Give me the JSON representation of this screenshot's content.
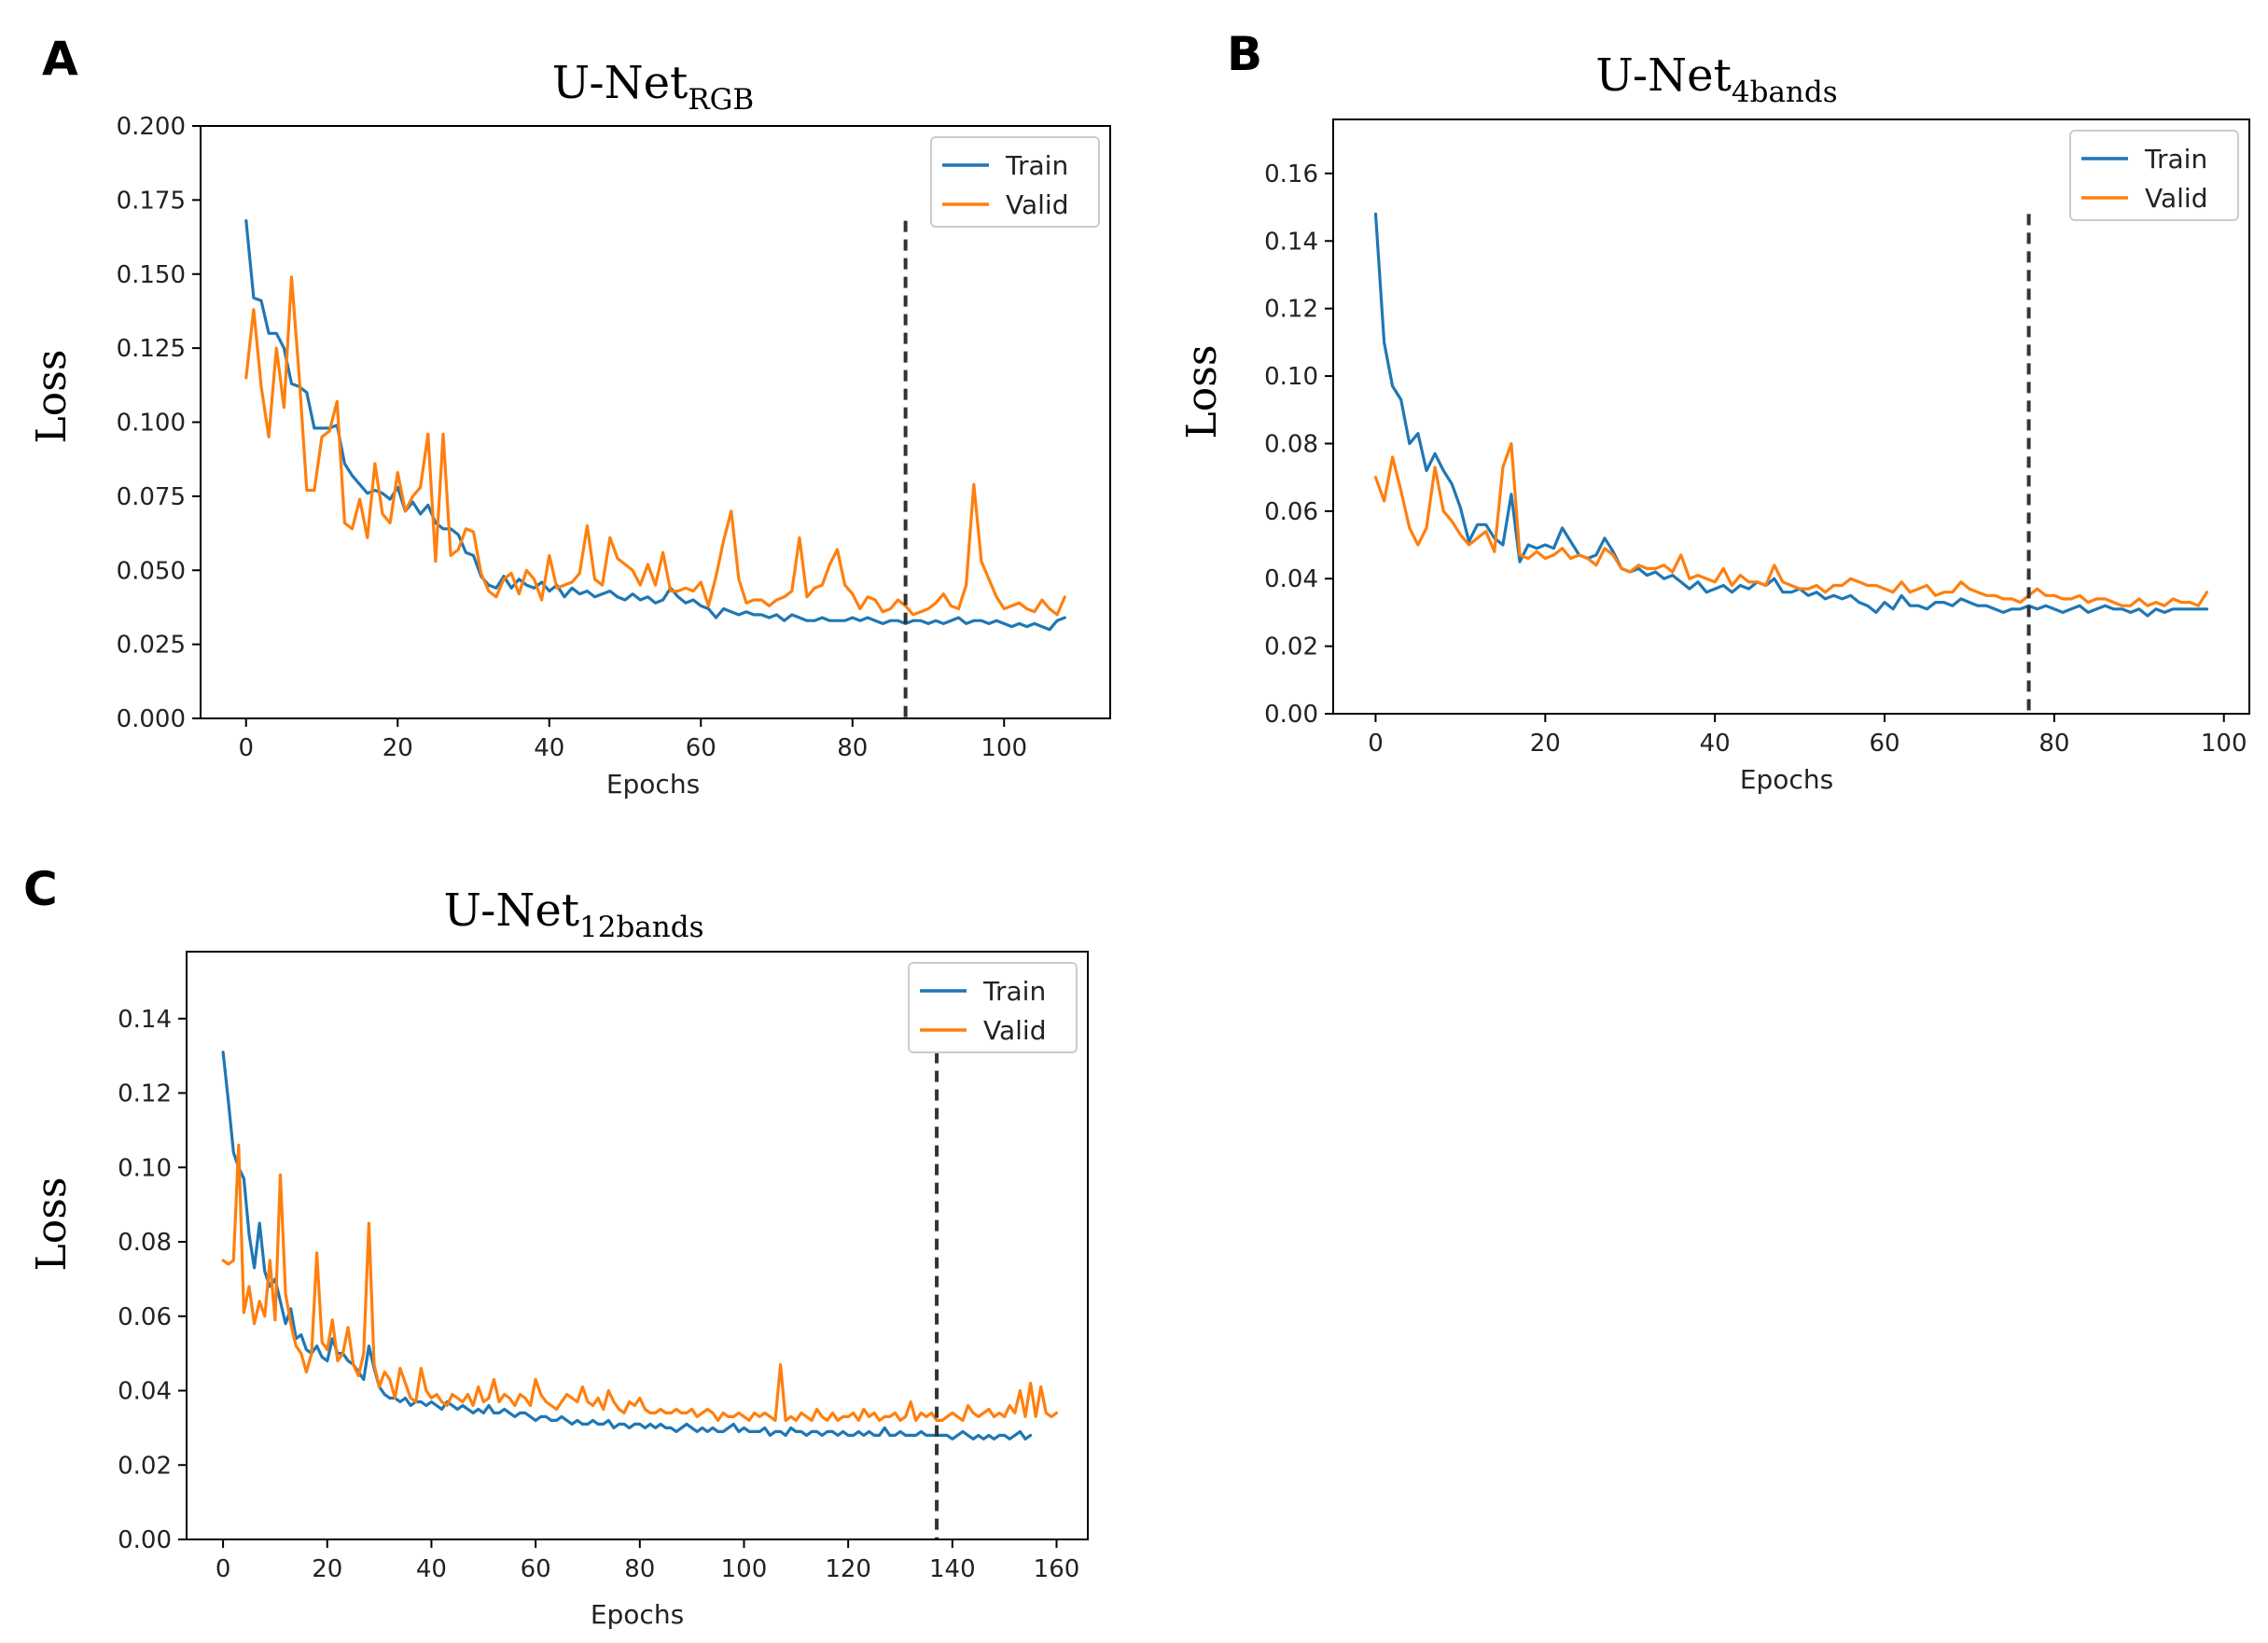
{
  "colors": {
    "train": "#1f77b4",
    "valid": "#ff7f0e",
    "vline": "#333333"
  },
  "chart_data": [
    {
      "panel": "A",
      "type": "line",
      "title": "U-Net",
      "title_sub": "RGB",
      "xlabel": "Epochs",
      "ylabel": "Loss",
      "xlim": [
        -6,
        114
      ],
      "ylim": [
        0,
        0.2
      ],
      "xticks": [
        0,
        20,
        40,
        60,
        80,
        100
      ],
      "yticks": [
        0.0,
        0.025,
        0.05,
        0.075,
        0.1,
        0.125,
        0.15,
        0.175,
        0.2
      ],
      "ytick_labels": [
        "0.000",
        "0.025",
        "0.050",
        "0.075",
        "0.100",
        "0.125",
        "0.150",
        "0.175",
        "0.200"
      ],
      "legend": [
        "Train",
        "Valid"
      ],
      "legend_position": "top-right",
      "best_epoch": 87,
      "best_epoch_top": 0.168,
      "series": [
        {
          "name": "Train",
          "values": [
            0.168,
            0.142,
            0.141,
            0.13,
            0.13,
            0.125,
            0.113,
            0.112,
            0.11,
            0.098,
            0.098,
            0.098,
            0.099,
            0.086,
            0.082,
            0.079,
            0.076,
            0.077,
            0.076,
            0.074,
            0.078,
            0.07,
            0.073,
            0.069,
            0.072,
            0.066,
            0.064,
            0.064,
            0.062,
            0.056,
            0.055,
            0.048,
            0.045,
            0.044,
            0.048,
            0.044,
            0.047,
            0.045,
            0.044,
            0.046,
            0.043,
            0.045,
            0.041,
            0.044,
            0.042,
            0.043,
            0.041,
            0.042,
            0.043,
            0.041,
            0.04,
            0.042,
            0.04,
            0.041,
            0.039,
            0.04,
            0.044,
            0.041,
            0.039,
            0.04,
            0.038,
            0.037,
            0.034,
            0.037,
            0.036,
            0.035,
            0.036,
            0.035,
            0.035,
            0.034,
            0.035,
            0.033,
            0.035,
            0.034,
            0.033,
            0.033,
            0.034,
            0.033,
            0.033,
            0.033,
            0.034,
            0.033,
            0.034,
            0.033,
            0.032,
            0.033,
            0.033,
            0.032,
            0.033,
            0.033,
            0.032,
            0.033,
            0.032,
            0.033,
            0.034,
            0.032,
            0.033,
            0.033,
            0.032,
            0.033,
            0.032,
            0.031,
            0.032,
            0.031,
            0.032,
            0.031,
            0.03,
            0.033,
            0.034
          ]
        },
        {
          "name": "Valid",
          "values": [
            0.115,
            0.138,
            0.112,
            0.095,
            0.125,
            0.105,
            0.149,
            0.116,
            0.077,
            0.077,
            0.095,
            0.097,
            0.107,
            0.066,
            0.064,
            0.074,
            0.061,
            0.086,
            0.069,
            0.066,
            0.083,
            0.07,
            0.075,
            0.078,
            0.096,
            0.053,
            0.096,
            0.055,
            0.057,
            0.064,
            0.063,
            0.049,
            0.043,
            0.041,
            0.047,
            0.049,
            0.042,
            0.05,
            0.047,
            0.04,
            0.055,
            0.044,
            0.045,
            0.046,
            0.049,
            0.065,
            0.047,
            0.045,
            0.061,
            0.054,
            0.052,
            0.05,
            0.045,
            0.052,
            0.045,
            0.056,
            0.043,
            0.043,
            0.044,
            0.043,
            0.046,
            0.038,
            0.048,
            0.06,
            0.07,
            0.047,
            0.039,
            0.04,
            0.04,
            0.038,
            0.04,
            0.041,
            0.043,
            0.061,
            0.041,
            0.044,
            0.045,
            0.052,
            0.057,
            0.045,
            0.042,
            0.037,
            0.041,
            0.04,
            0.036,
            0.037,
            0.04,
            0.038,
            0.035,
            0.036,
            0.037,
            0.039,
            0.042,
            0.038,
            0.037,
            0.045,
            0.079,
            0.053,
            0.047,
            0.041,
            0.037,
            0.038,
            0.039,
            0.037,
            0.036,
            0.04,
            0.037,
            0.035,
            0.041
          ]
        }
      ]
    },
    {
      "panel": "B",
      "type": "line",
      "title": "U-Net",
      "title_sub": "4bands",
      "xlabel": "Epochs",
      "ylabel": "Loss",
      "xlim": [
        -5,
        103
      ],
      "ylim": [
        0,
        0.176
      ],
      "xticks": [
        0,
        20,
        40,
        60,
        80,
        100
      ],
      "yticks": [
        0.0,
        0.02,
        0.04,
        0.06,
        0.08,
        0.1,
        0.12,
        0.14,
        0.16
      ],
      "ytick_labels": [
        "0.00",
        "0.02",
        "0.04",
        "0.06",
        "0.08",
        "0.10",
        "0.12",
        "0.14",
        "0.16"
      ],
      "legend": [
        "Train",
        "Valid"
      ],
      "legend_position": "top-right",
      "best_epoch": 77,
      "best_epoch_top": 0.148,
      "series": [
        {
          "name": "Train",
          "values": [
            0.148,
            0.11,
            0.097,
            0.093,
            0.08,
            0.083,
            0.072,
            0.077,
            0.072,
            0.068,
            0.061,
            0.051,
            0.056,
            0.056,
            0.052,
            0.05,
            0.065,
            0.045,
            0.05,
            0.049,
            0.05,
            0.049,
            0.055,
            0.051,
            0.047,
            0.046,
            0.047,
            0.052,
            0.048,
            0.043,
            0.042,
            0.043,
            0.041,
            0.042,
            0.04,
            0.041,
            0.039,
            0.037,
            0.039,
            0.036,
            0.037,
            0.038,
            0.036,
            0.038,
            0.037,
            0.039,
            0.038,
            0.04,
            0.036,
            0.036,
            0.037,
            0.035,
            0.036,
            0.034,
            0.035,
            0.034,
            0.035,
            0.033,
            0.032,
            0.03,
            0.033,
            0.031,
            0.035,
            0.032,
            0.032,
            0.031,
            0.033,
            0.033,
            0.032,
            0.034,
            0.033,
            0.032,
            0.032,
            0.031,
            0.03,
            0.031,
            0.031,
            0.032,
            0.031,
            0.032,
            0.031,
            0.03,
            0.031,
            0.032,
            0.03,
            0.031,
            0.032,
            0.031,
            0.031,
            0.03,
            0.031,
            0.029,
            0.031,
            0.03,
            0.031,
            0.031,
            0.031,
            0.031,
            0.031
          ]
        },
        {
          "name": "Valid",
          "values": [
            0.07,
            0.063,
            0.076,
            0.066,
            0.055,
            0.05,
            0.055,
            0.073,
            0.06,
            0.057,
            0.053,
            0.05,
            0.052,
            0.054,
            0.048,
            0.073,
            0.08,
            0.047,
            0.046,
            0.048,
            0.046,
            0.047,
            0.049,
            0.046,
            0.047,
            0.046,
            0.044,
            0.049,
            0.047,
            0.043,
            0.042,
            0.044,
            0.043,
            0.043,
            0.044,
            0.042,
            0.047,
            0.04,
            0.041,
            0.04,
            0.039,
            0.043,
            0.038,
            0.041,
            0.039,
            0.039,
            0.038,
            0.044,
            0.039,
            0.038,
            0.037,
            0.037,
            0.038,
            0.036,
            0.038,
            0.038,
            0.04,
            0.039,
            0.038,
            0.038,
            0.037,
            0.036,
            0.039,
            0.036,
            0.037,
            0.038,
            0.035,
            0.036,
            0.036,
            0.039,
            0.037,
            0.036,
            0.035,
            0.035,
            0.034,
            0.034,
            0.033,
            0.035,
            0.037,
            0.035,
            0.035,
            0.034,
            0.034,
            0.035,
            0.033,
            0.034,
            0.034,
            0.033,
            0.032,
            0.032,
            0.034,
            0.032,
            0.033,
            0.032,
            0.034,
            0.033,
            0.033,
            0.032,
            0.036
          ]
        }
      ]
    },
    {
      "panel": "C",
      "type": "line",
      "title": "U-Net",
      "title_sub": "12bands",
      "xlabel": "Epochs",
      "ylabel": "Loss",
      "xlim": [
        -7,
        166
      ],
      "ylim": [
        0,
        0.158
      ],
      "xticks": [
        0,
        20,
        40,
        60,
        80,
        100,
        120,
        140,
        160
      ],
      "yticks": [
        0.0,
        0.02,
        0.04,
        0.06,
        0.08,
        0.1,
        0.12,
        0.14
      ],
      "ytick_labels": [
        "0.00",
        "0.02",
        "0.04",
        "0.06",
        "0.08",
        "0.10",
        "0.12",
        "0.14"
      ],
      "legend": [
        "Train",
        "Valid"
      ],
      "legend_position": "top-right",
      "best_epoch": 137,
      "best_epoch_top": 0.131,
      "series": [
        {
          "name": "Train",
          "values": [
            0.131,
            0.118,
            0.104,
            0.1,
            0.097,
            0.082,
            0.073,
            0.085,
            0.072,
            0.068,
            0.07,
            0.064,
            0.058,
            0.062,
            0.054,
            0.055,
            0.051,
            0.05,
            0.052,
            0.049,
            0.048,
            0.054,
            0.05,
            0.05,
            0.048,
            0.047,
            0.045,
            0.043,
            0.052,
            0.046,
            0.041,
            0.039,
            0.038,
            0.038,
            0.037,
            0.038,
            0.036,
            0.037,
            0.037,
            0.036,
            0.037,
            0.036,
            0.035,
            0.037,
            0.036,
            0.035,
            0.036,
            0.035,
            0.034,
            0.035,
            0.034,
            0.036,
            0.034,
            0.034,
            0.035,
            0.034,
            0.033,
            0.034,
            0.034,
            0.033,
            0.032,
            0.033,
            0.033,
            0.032,
            0.032,
            0.033,
            0.032,
            0.031,
            0.032,
            0.031,
            0.031,
            0.032,
            0.031,
            0.031,
            0.032,
            0.03,
            0.031,
            0.031,
            0.03,
            0.031,
            0.031,
            0.03,
            0.031,
            0.03,
            0.031,
            0.03,
            0.03,
            0.029,
            0.03,
            0.031,
            0.03,
            0.029,
            0.03,
            0.029,
            0.03,
            0.029,
            0.029,
            0.03,
            0.031,
            0.029,
            0.03,
            0.029,
            0.029,
            0.029,
            0.03,
            0.028,
            0.029,
            0.029,
            0.028,
            0.03,
            0.029,
            0.029,
            0.028,
            0.029,
            0.029,
            0.028,
            0.029,
            0.029,
            0.028,
            0.029,
            0.028,
            0.028,
            0.029,
            0.028,
            0.029,
            0.028,
            0.028,
            0.03,
            0.028,
            0.028,
            0.029,
            0.028,
            0.028,
            0.028,
            0.029,
            0.028,
            0.028,
            0.028,
            0.028,
            0.028,
            0.027,
            0.028,
            0.029,
            0.028,
            0.027,
            0.028,
            0.027,
            0.028,
            0.027,
            0.028,
            0.028,
            0.027,
            0.028,
            0.029,
            0.027,
            0.028
          ]
        },
        {
          "name": "Valid",
          "values": [
            0.075,
            0.074,
            0.075,
            0.106,
            0.061,
            0.068,
            0.058,
            0.064,
            0.06,
            0.075,
            0.059,
            0.098,
            0.066,
            0.058,
            0.052,
            0.05,
            0.045,
            0.05,
            0.077,
            0.053,
            0.051,
            0.059,
            0.048,
            0.05,
            0.057,
            0.047,
            0.044,
            0.05,
            0.085,
            0.047,
            0.041,
            0.045,
            0.043,
            0.038,
            0.046,
            0.042,
            0.038,
            0.037,
            0.046,
            0.04,
            0.038,
            0.039,
            0.037,
            0.036,
            0.039,
            0.038,
            0.037,
            0.039,
            0.036,
            0.041,
            0.037,
            0.038,
            0.043,
            0.037,
            0.039,
            0.038,
            0.036,
            0.039,
            0.038,
            0.036,
            0.043,
            0.039,
            0.037,
            0.036,
            0.035,
            0.037,
            0.039,
            0.038,
            0.037,
            0.041,
            0.037,
            0.036,
            0.038,
            0.035,
            0.04,
            0.037,
            0.035,
            0.034,
            0.037,
            0.036,
            0.038,
            0.035,
            0.034,
            0.034,
            0.035,
            0.034,
            0.034,
            0.035,
            0.034,
            0.034,
            0.035,
            0.033,
            0.034,
            0.035,
            0.034,
            0.032,
            0.034,
            0.033,
            0.033,
            0.034,
            0.033,
            0.032,
            0.034,
            0.033,
            0.034,
            0.033,
            0.032,
            0.047,
            0.032,
            0.033,
            0.032,
            0.034,
            0.033,
            0.032,
            0.035,
            0.033,
            0.032,
            0.034,
            0.032,
            0.033,
            0.033,
            0.034,
            0.032,
            0.035,
            0.033,
            0.034,
            0.032,
            0.033,
            0.033,
            0.034,
            0.032,
            0.033,
            0.037,
            0.032,
            0.034,
            0.033,
            0.034,
            0.032,
            0.032,
            0.033,
            0.034,
            0.033,
            0.032,
            0.036,
            0.034,
            0.033,
            0.034,
            0.035,
            0.033,
            0.034,
            0.033,
            0.036,
            0.034,
            0.04,
            0.033,
            0.042,
            0.033,
            0.041,
            0.034,
            0.033,
            0.034
          ]
        }
      ]
    }
  ]
}
